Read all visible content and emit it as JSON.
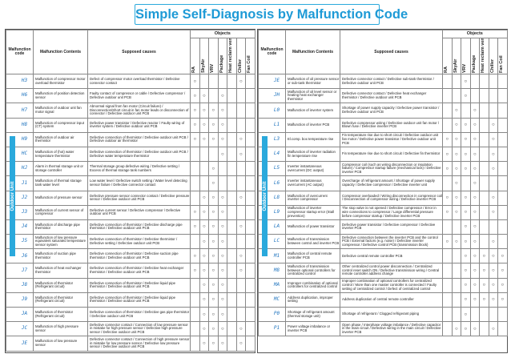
{
  "title": "Simple Self-Diagnosis by Malfunction Code",
  "side_label": "Outdoor Unit",
  "headers": {
    "code": "Malfunction code",
    "contents": "Malfunction Contents",
    "causes": "Supposed causes",
    "objects": "Objects",
    "columns": [
      "RA",
      "SkyAir",
      "VRV",
      "Package",
      "Heat reclaim ventilation",
      "Chiller",
      "Fan Coil"
    ]
  },
  "mark_symbol": "○",
  "left_rows": [
    {
      "code": "H3",
      "contents": "Malfunction of compressor motor overload thermistor",
      "causes": "Defect of compressor motor overload thermistor / Defective connector contact",
      "marks": [
        1,
        0,
        0,
        0,
        0,
        1,
        0
      ]
    },
    {
      "code": "H6",
      "contents": "Malfunction of position detection sensor",
      "causes": "Faulty contact of compressor or cable / Defective compressor / Defective outdoor unit PCB",
      "marks": [
        1,
        1,
        0,
        1,
        0,
        0,
        0
      ]
    },
    {
      "code": "H7",
      "contents": "Malfunction of outdoor unit fan motor signal",
      "causes": "Abnormal signal from fan motor (Circuit failure) / Disconnection/Short circuit in fan motor leads or disconnection of connector / Defective outdoor unit PCB",
      "marks": [
        1,
        1,
        1,
        1,
        0,
        0,
        0
      ]
    },
    {
      "code": "H8",
      "contents": "Malfunction of compressor input (CT) system",
      "causes": "Defective power transistor / Defective reactor / Faulty wiring of inverter system / Defective outdoor unit PCB",
      "marks": [
        1,
        1,
        1,
        1,
        0,
        0,
        0
      ]
    },
    {
      "code": "H9",
      "contents": "Malfunction of outdoor air thermistor",
      "causes": "Defective connection of thermistor / Defective outdoor unit PCB / Defective outdoor air thermistor",
      "marks": [
        1,
        1,
        1,
        1,
        0,
        1,
        0
      ]
    },
    {
      "code": "HC",
      "contents": "Malfunction of (hot) water temperature thermistor",
      "causes": "Defective connection of thermistor / Defective outdoor unit PCB / Defective water temperature thermistor",
      "marks": [
        0,
        0,
        0,
        1,
        0,
        1,
        0
      ]
    },
    {
      "code": "HJ",
      "contents": "Alarm in thermal storage unit or storage controller",
      "causes": "Thermal storage group defective wiring / Defective setting / Excess of thermal storage tank numbers",
      "marks": [
        0,
        0,
        1,
        0,
        0,
        0,
        0
      ]
    },
    {
      "code": "J1",
      "contents": "Malfunction of thermal storage tank water level",
      "causes": "Low water level / Defective switch setting / Water level detecting sensor failure / Defective connector contact",
      "marks": [
        0,
        0,
        1,
        0,
        0,
        0,
        0
      ]
    },
    {
      "code": "J2",
      "contents": "Malfunction of pressure sensor",
      "causes": "Defective pressure sensor connector contact / Defective pressure sensor / Defective outdoor unit PCB",
      "marks": [
        0,
        1,
        1,
        1,
        0,
        1,
        0
      ]
    },
    {
      "code": "J3",
      "contents": "Malfunction of current sensor of compressor",
      "causes": "Defective current sensor / Defective compressor / Defective outdoor unit PCB",
      "marks": [
        1,
        1,
        1,
        1,
        0,
        0,
        0
      ]
    },
    {
      "code": "J4",
      "contents": "Malfunction of discharge pipe thermistor",
      "causes": "Defective connection of thermistor / Defective discharge pipe thermistor / Defective outdoor unit PCB",
      "marks": [
        1,
        1,
        1,
        1,
        0,
        1,
        0
      ]
    },
    {
      "code": "J5",
      "contents": "Malfunction of low pressure equivalent saturated temperature sensor system",
      "causes": "Defective connection of thermistor / Defective thermistor / Defective setting / Defective outdoor unit PCB",
      "marks": [
        0,
        1,
        1,
        1,
        0,
        0,
        0
      ]
    },
    {
      "code": "J6",
      "contents": "Malfunction of suction pipe thermistor",
      "causes": "Defective connection of thermistor / Defective suction pipe thermistor / Defective outdoor unit PCB",
      "marks": [
        1,
        1,
        1,
        1,
        0,
        1,
        0
      ]
    },
    {
      "code": "J7",
      "contents": "Malfunction of heat exchanger thermistor",
      "causes": "Defective connection of thermistor / Defective heat exchanger thermistor / Defective outdoor unit PCB",
      "marks": [
        1,
        1,
        1,
        1,
        0,
        1,
        0
      ]
    },
    {
      "code": "J8",
      "contents": "Malfunction of thermistor (Refrigerant circuit)",
      "causes": "Defective connection of thermistor / Defective liquid pipe thermistor / Defective outdoor unit PCB",
      "marks": [
        0,
        1,
        1,
        1,
        0,
        0,
        0
      ]
    },
    {
      "code": "J9",
      "contents": "Malfunction of thermistor (Refrigerant circuit)",
      "causes": "Defective connection of thermistor / Defective liquid pipe thermistor / Defective outdoor unit PCB",
      "marks": [
        0,
        1,
        1,
        1,
        0,
        0,
        0
      ]
    },
    {
      "code": "JA",
      "contents": "Malfunction of thermistor (Refrigerant circuit)",
      "causes": "Defective connection of thermistor / Defective gas pipe thermistor / Defective outdoor unit PCB",
      "marks": [
        0,
        1,
        1,
        1,
        0,
        0,
        0
      ]
    },
    {
      "code": "JC",
      "contents": "Malfunction of high pressure sensor",
      "causes": "Defective connector contact / Connection of low pressure sensor in mistake for high pressure sensor / Defective high pressure sensor / Defective outdoor unit PCB",
      "marks": [
        0,
        1,
        1,
        1,
        0,
        1,
        0
      ]
    },
    {
      "code": "JE",
      "contents": "Malfunction of low pressure sensor",
      "causes": "Defective connector contact / Connection of high pressure sensor in mistake for low pressure sensor / Defective low pressure sensor / Defective outdoor unit PCB",
      "marks": [
        0,
        1,
        1,
        1,
        0,
        1,
        0
      ]
    }
  ],
  "right_rows": [
    {
      "code": "JE",
      "contents": "Malfunction of oil pressure sensor or sub-tank thermistor",
      "causes": "Defective connector contact / Defective sub-tank thermistor / Defective outdoor unit PCB",
      "marks": [
        0,
        0,
        1,
        0,
        0,
        0,
        0
      ]
    },
    {
      "code": "JH",
      "contents": "Malfunction of oil level sensor or heating heat exchanger thermistor",
      "causes": "Defective connector contact / Defective heat exchanger thermistor / Defective outdoor unit PCB",
      "marks": [
        0,
        0,
        1,
        0,
        0,
        0,
        0
      ]
    },
    {
      "code": "L0",
      "contents": "Malfunction of inverter system",
      "causes": "Shortage of power supply capacity / Defective power transistor / Defective outdoor unit PCB",
      "marks": [
        0,
        1,
        0,
        1,
        0,
        0,
        0
      ]
    },
    {
      "code": "L1",
      "contents": "Malfunction of inverter PCB",
      "causes": "Defective compressor wiring / Defective outdoor unit fan motor / Blown fuse / Defective inverter PCB",
      "marks": [
        0,
        1,
        1,
        1,
        0,
        1,
        0
      ]
    },
    {
      "code": "L3",
      "contents": "El.comp. box temperature rise",
      "causes": "Fin temperature rise due to short circuit / Defective outdoor unit fan motor / Defective power transistor / Defective outdoor unit PCB",
      "marks": [
        1,
        1,
        1,
        1,
        0,
        1,
        0
      ]
    },
    {
      "code": "L4",
      "contents": "Malfunction of inverter radiation fin temperature rise",
      "causes": "Fin temperature rise due to short circuit / Defective fin thermistor",
      "marks": [
        1,
        1,
        1,
        1,
        0,
        1,
        0
      ]
    },
    {
      "code": "L5",
      "contents": "Inverter instantaneous overcurrent (DC output)",
      "causes": "Compressor coil (such as wiring disconnection or insulation failure) / Compressor startup failure (mechanical lock) / Defective inverter PCB",
      "marks": [
        1,
        1,
        1,
        1,
        0,
        1,
        0
      ]
    },
    {
      "code": "L6",
      "contents": "Inverter instantaneous overcurrent (AC output)",
      "causes": "Overcharge of refrigerant amount / Shortage of power supply capacity / Defective compressor / Defective inverter unit",
      "marks": [
        0,
        1,
        0,
        1,
        0,
        0,
        0
      ]
    },
    {
      "code": "L8",
      "contents": "Malfunction of overcurrent inverter compressor",
      "causes": "Compressor overloaded / Wiring disconnection in compressor coil / Disconnection of compressor wiring / Defective inverter PCB",
      "marks": [
        1,
        1,
        1,
        1,
        0,
        1,
        0
      ]
    },
    {
      "code": "L9",
      "contents": "Malfunction of inverter compressor startup error (Stall prevention)",
      "causes": "The stop valve is not opened / Defective compressor / Error in wire connections to compressor / Large differential pressure before compressor startup / Defective inverter PCB",
      "marks": [
        1,
        1,
        1,
        1,
        0,
        1,
        0
      ]
    },
    {
      "code": "LA",
      "contents": "Malfunction of power transistor",
      "causes": "Defective power transistor / Defective compressor / Defective inverter PCB",
      "marks": [
        0,
        0,
        1,
        1,
        0,
        0,
        0
      ]
    },
    {
      "code": "LC",
      "contents": "Malfunction of transmission between control and inverter PCB",
      "causes": "Defective connection between the inverter PCB and the control PCB / External factors (e.g. noise) / Defective inverter compressor / Defective control PCB (transmission block)",
      "marks": [
        1,
        1,
        1,
        1,
        0,
        1,
        0
      ]
    },
    {
      "code": "M1",
      "contents": "Malfunction of central remote controller PCB",
      "causes": "Defective central remote controller PCB",
      "marks": [
        0,
        0,
        1,
        1,
        1,
        1,
        1
      ]
    },
    {
      "code": "M8",
      "contents": "Malfunction of transmission between optional controllers for centralized control",
      "causes": "Other centralized control power disconnection / Centralized control reset switch ON / Defective transmission wiring / Central remote controller address change",
      "marks": [
        0,
        0,
        1,
        1,
        1,
        1,
        1
      ]
    },
    {
      "code": "MA",
      "contents": "Improper combination of optional controllers for centralized control",
      "causes": "Improper combination of optional controllers for centralized control / More than one master controller is connected / Faulty setting of centralized control / Defect of centralized control",
      "marks": [
        0,
        0,
        1,
        1,
        1,
        1,
        1
      ]
    },
    {
      "code": "MC",
      "contents": "Address duplication, improper setting",
      "causes": "Address duplication of central remote controller",
      "marks": [
        0,
        0,
        1,
        1,
        1,
        1,
        1
      ]
    },
    {
      "code": "P0",
      "contents": "Shortage of refrigerant amount (thermal storage unit)",
      "causes": "Shortage of refrigerant / Clogged refrigerant piping",
      "marks": [
        0,
        0,
        1,
        0,
        0,
        0,
        0
      ]
    },
    {
      "code": "P1",
      "contents": "Power voltage imbalance or inverter PCB",
      "causes": "Open phase / Interphase voltage imbalance / Defective capacitor in the main circuit / Defective wiring in the main circuit / Defective inverter PCB",
      "marks": [
        0,
        1,
        1,
        1,
        0,
        1,
        0
      ]
    }
  ]
}
